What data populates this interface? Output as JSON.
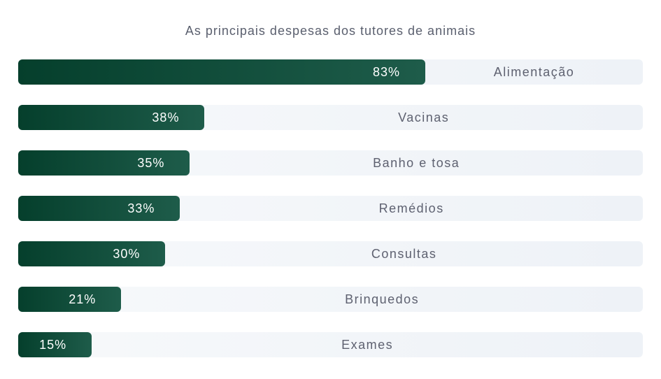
{
  "chart_data": {
    "type": "bar",
    "orientation": "horizontal",
    "title": "As principais despesas dos tutores de animais",
    "categories": [
      "Alimentação",
      "Vacinas",
      "Banho e tosa",
      "Remédios",
      "Consultas",
      "Brinquedos",
      "Exames"
    ],
    "values": [
      83,
      38,
      35,
      33,
      30,
      21,
      15
    ],
    "value_labels": [
      "83%",
      "38%",
      "35%",
      "33%",
      "30%",
      "21%",
      "15%"
    ],
    "unit": "%",
    "xlim": [
      0,
      100
    ],
    "grid": false,
    "legend": "none",
    "colors": {
      "bar_start": "#053f2c",
      "bar_end": "#1e5c4a",
      "track": "#eef2f7",
      "label_text": "#5e6170",
      "value_text": "#ffffff"
    }
  }
}
